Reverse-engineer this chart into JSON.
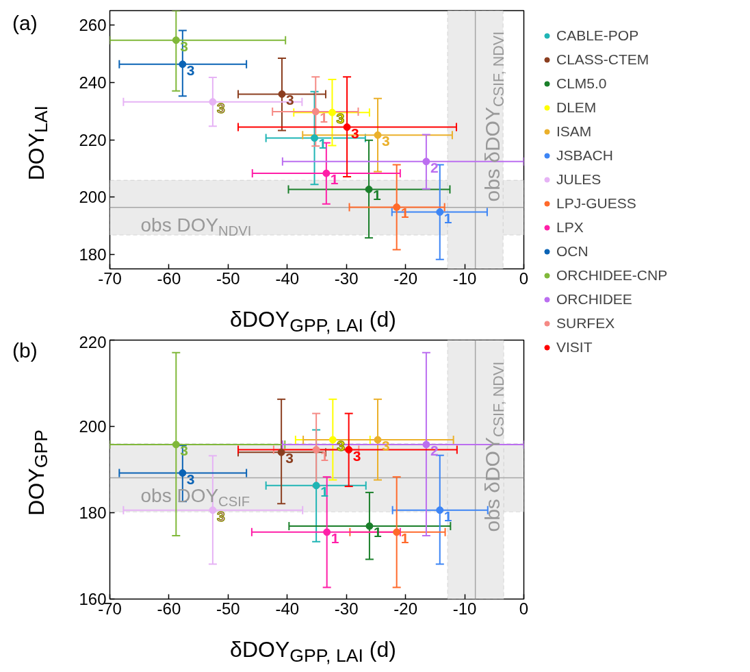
{
  "chart_data": [
    {
      "type": "scatter",
      "title": "(a)",
      "xlabel": "δDOY$_{GPP, LAI}$ (d)",
      "ylabel": "DOY$_{LAI}$",
      "xlim": [
        -70,
        0
      ],
      "ylim": [
        175,
        265
      ],
      "xticks": [
        -70,
        -60,
        -50,
        -40,
        -30,
        -20,
        -10,
        0
      ],
      "yticks": [
        180,
        200,
        220,
        240,
        260
      ],
      "marker": "circle",
      "legend": "right",
      "bands": [
        {
          "axis": "y",
          "from": 186.8,
          "to": 205.9,
          "color": "#ebebeb"
        },
        {
          "axis": "x",
          "from": -12.9,
          "to": -3.5,
          "color": "#ebebeb"
        }
      ],
      "ref_lines": [
        {
          "axis": "y",
          "value": 196.4,
          "label": "obs DOY$_{NDVI}$",
          "color": "#a6a6a6"
        },
        {
          "axis": "x",
          "value": -8.2,
          "label": "obs δDOY$_{CSIF, NDVI}$",
          "color": "#a6a6a6"
        }
      ],
      "series": [
        {
          "name": "CABLE-POP",
          "color": "#1fb5b5",
          "x": [
            -35.4
          ],
          "values": [
            220.6
          ],
          "xerrors": [
            [
              -43.6,
              -26.8
            ]
          ],
          "errors": [
            [
              204.4,
              236.8
            ]
          ]
        },
        {
          "name": "CLASS-CTEM",
          "color": "#8b3e1f",
          "x": [
            -40.9
          ],
          "values": [
            235.9
          ],
          "xerrors": [
            [
              -48.3,
              -33.5
            ]
          ],
          "errors": [
            [
              223.2,
              248.4
            ]
          ]
        },
        {
          "name": "CLM5.0",
          "color": "#1a7f2a",
          "x": [
            -26.2
          ],
          "values": [
            202.7
          ],
          "xerrors": [
            [
              -39.8,
              -12.5
            ]
          ],
          "errors": [
            [
              185.8,
              219.8
            ]
          ]
        },
        {
          "name": "DLEM",
          "color": "#ffff00",
          "x": [
            -32.4
          ],
          "values": [
            229.5
          ],
          "xerrors": [
            [
              -38.9,
              -26.1
            ]
          ],
          "errors": [
            [
              218.0,
              241.0
            ]
          ]
        },
        {
          "name": "ISAM",
          "color": "#ebb02a",
          "x": [
            -24.7
          ],
          "values": [
            221.6
          ],
          "xerrors": [
            [
              -37.4,
              -12.1
            ]
          ],
          "errors": [
            [
              208.9,
              234.4
            ]
          ]
        },
        {
          "name": "JSBACH",
          "color": "#3d85f5",
          "x": [
            -14.2
          ],
          "values": [
            194.8
          ],
          "xerrors": [
            [
              -22.3,
              -6.2
            ]
          ],
          "errors": [
            [
              178.3,
              211.3
            ]
          ]
        },
        {
          "name": "JULES",
          "color": "#e6b3f5",
          "x": [
            -52.6
          ],
          "values": [
            233.2
          ],
          "xerrors": [
            [
              -67.7,
              -37.5
            ]
          ],
          "errors": [
            [
              224.7,
              241.7
            ]
          ]
        },
        {
          "name": "LPJ-GUESS",
          "color": "#ff6a2b",
          "x": [
            -21.5
          ],
          "values": [
            196.5
          ],
          "xerrors": [
            [
              -29.5,
              -13.4
            ]
          ],
          "errors": [
            [
              181.7,
              211.3
            ]
          ]
        },
        {
          "name": "LPX",
          "color": "#ff1fa8",
          "x": [
            -33.4
          ],
          "values": [
            208.3
          ],
          "xerrors": [
            [
              -45.9,
              -20.9
            ]
          ],
          "errors": [
            [
              197.6,
              218.9
            ]
          ]
        },
        {
          "name": "OCN",
          "color": "#0a63b5",
          "x": [
            -57.7
          ],
          "values": [
            246.3
          ],
          "xerrors": [
            [
              -68.4,
              -46.9
            ]
          ],
          "errors": [
            [
              235.2,
              258.1
            ]
          ]
        },
        {
          "name": "ORCHIDEE-CNP",
          "color": "#80b83a",
          "x": [
            -58.8
          ],
          "values": [
            254.7
          ],
          "xerrors": [
            [
              -70,
              -40.3
            ]
          ],
          "errors": [
            [
              237.0,
              265
            ]
          ]
        },
        {
          "name": "ORCHIDEE",
          "color": "#bb6ef0",
          "x": [
            -16.5
          ],
          "values": [
            212.4
          ],
          "xerrors": [
            [
              -40.8,
              0
            ]
          ],
          "errors": [
            [
              202.9,
              221.8
            ]
          ]
        },
        {
          "name": "SURFEX",
          "color": "#f58a85",
          "x": [
            -35.2
          ],
          "values": [
            229.8
          ],
          "xerrors": [
            [
              -42.5,
              -28.0
            ]
          ],
          "errors": [
            [
              217.8,
              241.9
            ]
          ]
        },
        {
          "name": "VISIT",
          "color": "#ff0000",
          "x": [
            -29.9
          ],
          "values": [
            224.4
          ],
          "xerrors": [
            [
              -48.3,
              -11.4
            ]
          ],
          "errors": [
            [
              207.1,
              241.9
            ]
          ]
        }
      ],
      "annotations": [
        {
          "text": "1",
          "x": -35.4,
          "y": 220.6
        },
        {
          "text": "3",
          "x": -40.9,
          "y": 235.9
        },
        {
          "text": "1",
          "x": -26.2,
          "y": 202.7
        },
        {
          "text": "3",
          "x": -32.4,
          "y": 229.5
        },
        {
          "text": "3",
          "x": -24.7,
          "y": 221.6
        },
        {
          "text": "1",
          "x": -14.2,
          "y": 194.8
        },
        {
          "text": "3",
          "x": -52.6,
          "y": 233.2
        },
        {
          "text": "1",
          "x": -21.5,
          "y": 196.5
        },
        {
          "text": "1",
          "x": -33.4,
          "y": 208.3
        },
        {
          "text": "3",
          "x": -57.7,
          "y": 246.3
        },
        {
          "text": "3",
          "x": -58.8,
          "y": 254.7
        },
        {
          "text": "2",
          "x": -16.5,
          "y": 212.4
        },
        {
          "text": "1",
          "x": -35.2,
          "y": 229.8
        },
        {
          "text": "3",
          "x": -29.9,
          "y": 224.4
        }
      ]
    },
    {
      "type": "scatter",
      "title": "(b)",
      "xlabel": "δDOY$_{GPP, LAI}$ (d)",
      "ylabel": "DOY$_{GPP}$",
      "xlim": [
        -70,
        0
      ],
      "ylim": [
        160,
        220
      ],
      "xticks": [
        -70,
        -60,
        -50,
        -40,
        -30,
        -20,
        -10,
        0
      ],
      "yticks": [
        160,
        180,
        200,
        220
      ],
      "marker": "circle",
      "bands": [
        {
          "axis": "y",
          "from": 180.2,
          "to": 196.0,
          "color": "#ebebeb"
        },
        {
          "axis": "x",
          "from": -12.9,
          "to": -3.4,
          "color": "#ebebeb"
        }
      ],
      "ref_lines": [
        {
          "axis": "y",
          "value": 188.1,
          "label": "obs DOY$_{CSIF}$",
          "color": "#a6a6a6"
        },
        {
          "axis": "x",
          "value": -8.2,
          "label": "obs δDOY$_{CSIF, NDVI}$",
          "color": "#a6a6a6"
        }
      ],
      "series": [
        {
          "color": "#1fb5b5",
          "x": [
            -35.1
          ],
          "values": [
            186.3
          ],
          "xerrors": [
            [
              -43.6,
              -26.7
            ]
          ],
          "errors": [
            [
              173.3,
              199.2
            ]
          ]
        },
        {
          "color": "#8b3e1f",
          "x": [
            -41.0
          ],
          "values": [
            194.0
          ],
          "xerrors": [
            [
              -48.3,
              -33.5
            ]
          ],
          "errors": [
            [
              182.1,
              206.3
            ]
          ]
        },
        {
          "color": "#1a7f2a",
          "x": [
            -26.1
          ],
          "values": [
            176.9
          ],
          "xerrors": [
            [
              -39.7,
              -12.4
            ]
          ],
          "errors": [
            [
              169.2,
              184.7
            ]
          ]
        },
        {
          "color": "#ffff00",
          "x": [
            -32.3
          ],
          "values": [
            196.9
          ],
          "xerrors": [
            [
              -38.6,
              -26.0
            ]
          ],
          "errors": [
            [
              187.6,
              206.3
            ]
          ]
        },
        {
          "color": "#ebb02a",
          "x": [
            -24.7
          ],
          "values": [
            196.9
          ],
          "xerrors": [
            [
              -37.3,
              -11.9
            ]
          ],
          "errors": [
            [
              187.6,
              206.3
            ]
          ]
        },
        {
          "color": "#3d85f5",
          "x": [
            -14.2
          ],
          "values": [
            180.6
          ],
          "xerrors": [
            [
              -22.2,
              -6.1
            ]
          ],
          "errors": [
            [
              168.1,
              193.3
            ]
          ]
        },
        {
          "color": "#e6b3f5",
          "x": [
            -52.6
          ],
          "values": [
            180.6
          ],
          "xerrors": [
            [
              -67.7,
              -37.4
            ]
          ],
          "errors": [
            [
              168.1,
              193.2
            ]
          ]
        },
        {
          "color": "#ff6a2b",
          "x": [
            -21.5
          ],
          "values": [
            175.5
          ],
          "xerrors": [
            [
              -29.4,
              -13.3
            ]
          ],
          "errors": [
            [
              162.7,
              188.3
            ]
          ]
        },
        {
          "color": "#ff1fa8",
          "x": [
            -33.3
          ],
          "values": [
            175.5
          ],
          "xerrors": [
            [
              -46.0,
              -20.9
            ]
          ],
          "errors": [
            [
              162.7,
              188.3
            ]
          ]
        },
        {
          "color": "#0a63b5",
          "x": [
            -57.7
          ],
          "values": [
            189.2
          ],
          "xerrors": [
            [
              -68.4,
              -46.9
            ]
          ],
          "errors": [
            [
              182.6,
              195.6
            ]
          ]
        },
        {
          "color": "#80b83a",
          "x": [
            -58.8
          ],
          "values": [
            195.8
          ],
          "xerrors": [
            [
              -70,
              -40.4
            ]
          ],
          "errors": [
            [
              174.7,
              217.1
            ]
          ]
        },
        {
          "color": "#bb6ef0",
          "x": [
            -16.5
          ],
          "values": [
            195.8
          ],
          "xerrors": [
            [
              -40.8,
              0
            ]
          ],
          "errors": [
            [
              174.7,
              217.1
            ]
          ]
        },
        {
          "color": "#f58a85",
          "x": [
            -35.1
          ],
          "values": [
            194.6
          ],
          "xerrors": [
            [
              -42.3,
              -27.9
            ]
          ],
          "errors": [
            [
              186.1,
              203.0
            ]
          ]
        },
        {
          "color": "#ff0000",
          "x": [
            -29.6
          ],
          "values": [
            194.6
          ],
          "xerrors": [
            [
              -48.3,
              -11.3
            ]
          ],
          "errors": [
            [
              186.1,
              203.0
            ]
          ]
        }
      ],
      "annotations": [
        {
          "text": "1",
          "x": -35.1,
          "y": 186.3
        },
        {
          "text": "3",
          "x": -41.0,
          "y": 194.0
        },
        {
          "text": "1",
          "x": -26.1,
          "y": 176.9
        },
        {
          "text": "3",
          "x": -32.3,
          "y": 196.9
        },
        {
          "text": "3",
          "x": -24.7,
          "y": 196.9
        },
        {
          "text": "1",
          "x": -14.2,
          "y": 180.6
        },
        {
          "text": "3",
          "x": -52.6,
          "y": 180.6
        },
        {
          "text": "1",
          "x": -21.5,
          "y": 175.5
        },
        {
          "text": "1",
          "x": -33.3,
          "y": 175.5
        },
        {
          "text": "3",
          "x": -57.7,
          "y": 189.2
        },
        {
          "text": "3",
          "x": -58.8,
          "y": 195.8
        },
        {
          "text": "2",
          "x": -16.5,
          "y": 195.8
        },
        {
          "text": "1",
          "x": -35.1,
          "y": 194.6
        },
        {
          "text": "3",
          "x": -29.6,
          "y": 194.6
        }
      ]
    }
  ]
}
